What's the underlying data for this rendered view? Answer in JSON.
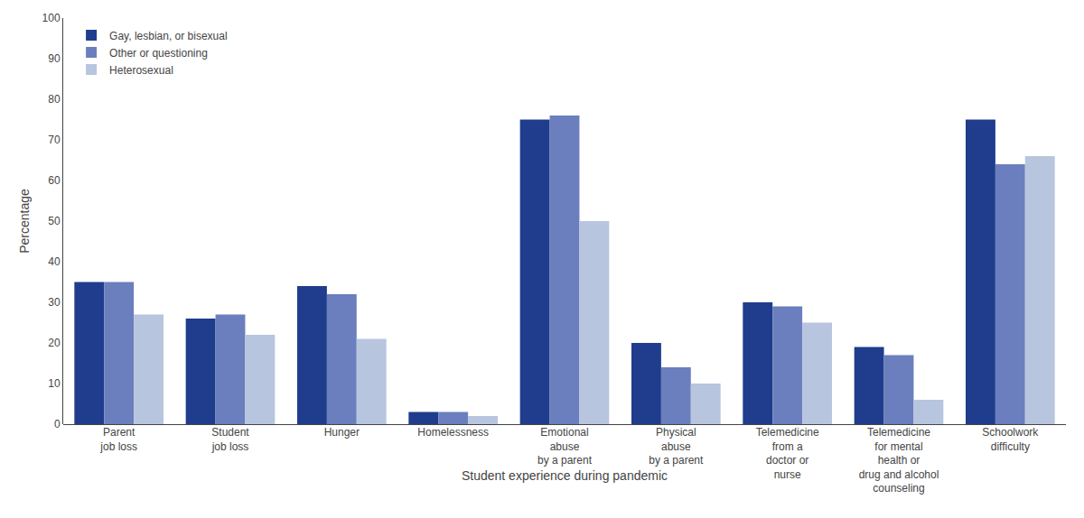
{
  "chart_data": {
    "type": "bar",
    "categories": [
      "Parent\njob loss",
      "Student\njob loss",
      "Hunger",
      "Homelessness",
      "Emotional\nabuse\nby a parent",
      "Physical\nabuse\nby a parent",
      "Telemedicine\nfrom a\ndoctor or\nnurse",
      "Telemedicine\nfor mental\nhealth or\ndrug and alcohol\ncounseling",
      "Schoolwork\ndifficulty"
    ],
    "series": [
      {
        "name": "Gay, lesbian, or bisexual",
        "color": "#1f3d8c",
        "values": [
          35,
          26,
          34,
          3,
          75,
          20,
          30,
          19,
          75
        ]
      },
      {
        "name": "Other or questioning",
        "color": "#6b7fbe",
        "values": [
          35,
          27,
          32,
          3,
          76,
          14,
          29,
          17,
          64
        ]
      },
      {
        "name": "Heterosexual",
        "color": "#b8c5df",
        "values": [
          27,
          22,
          21,
          2,
          50,
          10,
          25,
          6,
          66
        ]
      }
    ],
    "xlabel": "Student experience during pandemic",
    "ylabel": "Percentage",
    "ylim": [
      0,
      100
    ],
    "yticks": [
      0,
      10,
      20,
      30,
      40,
      50,
      60,
      70,
      80,
      90,
      100
    ],
    "grid": false,
    "legend": "upper left"
  }
}
